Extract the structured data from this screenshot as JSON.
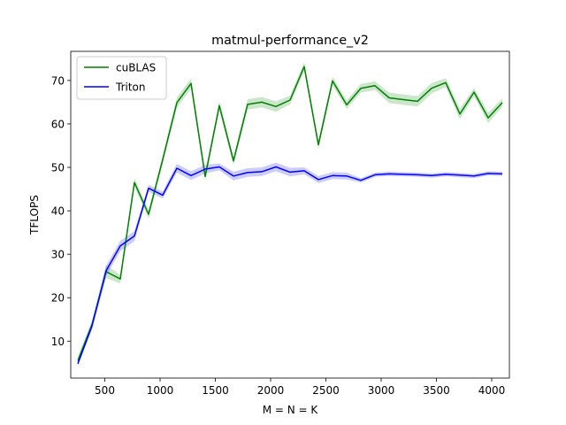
{
  "chart_data": {
    "type": "line",
    "title": "matmul-performance_v2",
    "xlabel": "M = N = K",
    "ylabel": "TFLOPS",
    "xlim": [
      192,
      4160
    ],
    "ylim": [
      1.5,
      76.7
    ],
    "xticks": [
      500,
      1000,
      1500,
      2000,
      2500,
      3000,
      3500,
      4000
    ],
    "yticks": [
      10,
      20,
      30,
      40,
      50,
      60,
      70
    ],
    "grid": false,
    "legend": "top-left",
    "x": [
      256,
      384,
      512,
      640,
      768,
      896,
      1024,
      1152,
      1280,
      1408,
      1536,
      1664,
      1792,
      1920,
      2048,
      2176,
      2304,
      2432,
      2560,
      2688,
      2816,
      2944,
      3072,
      3200,
      3328,
      3456,
      3584,
      3712,
      3840,
      3968,
      4096
    ],
    "series": [
      {
        "name": "cuBLAS",
        "color": "#008000",
        "values": [
          5.5,
          13.8,
          26.0,
          24.3,
          46.5,
          39.2,
          51.8,
          64.9,
          69.3,
          47.9,
          64.2,
          51.5,
          64.5,
          65.0,
          64.0,
          65.5,
          73.2,
          55.2,
          69.9,
          64.4,
          68.2,
          68.8,
          66.0,
          65.6,
          65.2,
          68.2,
          69.5,
          62.3,
          67.3,
          61.4,
          64.9
        ],
        "band": [
          1.0,
          1.0,
          1.5,
          1.0,
          1.0,
          1.0,
          1.0,
          1.2,
          1.2,
          1.0,
          1.0,
          1.0,
          1.2,
          1.2,
          1.2,
          1.0,
          1.0,
          1.0,
          1.0,
          1.0,
          1.0,
          1.0,
          1.2,
          1.2,
          1.2,
          1.2,
          1.0,
          1.2,
          1.0,
          1.2,
          1.0
        ]
      },
      {
        "name": "Triton",
        "color": "#0000ff",
        "values": [
          4.8,
          13.5,
          26.2,
          31.9,
          34.2,
          45.2,
          43.6,
          49.8,
          48.1,
          49.6,
          50.1,
          48.0,
          48.8,
          49.0,
          50.1,
          48.9,
          49.2,
          47.2,
          48.1,
          48.0,
          47.0,
          48.3,
          48.5,
          48.4,
          48.3,
          48.1,
          48.4,
          48.2,
          48.0,
          48.6,
          48.5
        ],
        "band": [
          0.5,
          0.8,
          1.2,
          1.2,
          1.2,
          0.8,
          0.8,
          1.0,
          1.0,
          1.0,
          0.8,
          1.0,
          1.0,
          1.0,
          1.0,
          1.0,
          0.8,
          0.8,
          0.8,
          0.8,
          0.5,
          0.5,
          0.5,
          0.5,
          0.5,
          0.5,
          0.5,
          0.5,
          0.5,
          0.5,
          0.5
        ]
      }
    ]
  }
}
